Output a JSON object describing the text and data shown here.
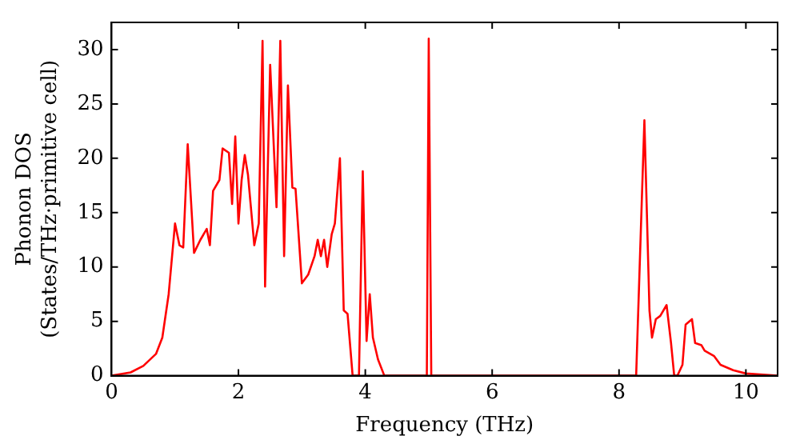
{
  "chart_data": {
    "type": "line",
    "xlabel": "Frequency (THz)",
    "ylabel": "Phonon DOS\n(States/THz·primitive cell)",
    "xlim": [
      0,
      10.5
    ],
    "ylim": [
      0,
      32.5
    ],
    "xticks": [
      0,
      2,
      4,
      6,
      8,
      10
    ],
    "yticks": [
      0,
      5,
      10,
      15,
      20,
      25,
      30
    ],
    "grid": false,
    "legend": false,
    "marker": "none",
    "line_style": "solid",
    "series": [
      {
        "color": "#ff0000",
        "x": [
          0,
          0.3,
          0.5,
          0.7,
          0.8,
          0.9,
          1.0,
          1.07,
          1.13,
          1.2,
          1.3,
          1.4,
          1.5,
          1.55,
          1.6,
          1.7,
          1.75,
          1.85,
          1.9,
          1.95,
          2.0,
          2.05,
          2.1,
          2.15,
          2.25,
          2.32,
          2.38,
          2.42,
          2.5,
          2.6,
          2.66,
          2.72,
          2.78,
          2.85,
          2.9,
          3.0,
          3.1,
          3.2,
          3.25,
          3.3,
          3.35,
          3.4,
          3.47,
          3.52,
          3.6,
          3.66,
          3.72,
          3.8,
          3.9,
          3.96,
          4.02,
          4.07,
          4.12,
          4.2,
          4.3,
          4.97,
          5.0,
          5.04,
          8.27,
          8.4,
          8.48,
          8.52,
          8.58,
          8.65,
          8.75,
          8.82,
          8.87,
          8.92,
          9.0,
          9.05,
          9.15,
          9.2,
          9.3,
          9.35,
          9.5,
          9.6,
          9.8,
          10.0,
          10.5
        ],
        "values": [
          0,
          0.3,
          0.9,
          2,
          3.5,
          7.5,
          14,
          12,
          11.8,
          21.3,
          11.3,
          12.5,
          13.5,
          12,
          17,
          18,
          20.9,
          20.5,
          15.8,
          22,
          14,
          18,
          20.3,
          18.5,
          12,
          14,
          30.8,
          8.2,
          28.6,
          15.5,
          30.8,
          11,
          26.7,
          17.3,
          17.2,
          8.5,
          9.3,
          11,
          12.5,
          11,
          12.5,
          10,
          13,
          14,
          20,
          6,
          5.7,
          0,
          0,
          18.8,
          3.2,
          7.5,
          3.5,
          1.5,
          0,
          0,
          31,
          0,
          0,
          23.5,
          6,
          3.5,
          5.2,
          5.5,
          6.5,
          3,
          0,
          0,
          1,
          4.7,
          5.2,
          3,
          2.8,
          2.3,
          1.8,
          1,
          0.5,
          0.2,
          0
        ]
      }
    ]
  }
}
